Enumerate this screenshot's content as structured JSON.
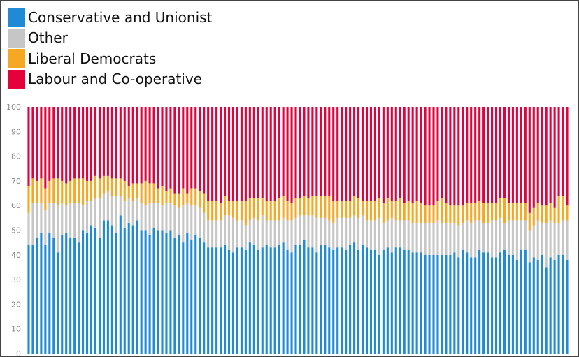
{
  "chart_data": {
    "type": "bar",
    "stacked": true,
    "ylim": [
      0,
      100
    ],
    "yticks": [
      "0",
      "10",
      "20",
      "30",
      "40",
      "50",
      "60",
      "70",
      "80",
      "90",
      "100"
    ],
    "grid": false,
    "legend_position": "top-left",
    "legend": [
      {
        "name": "Conservative and Unionist",
        "color": "#1f8ad6"
      },
      {
        "name": "Other",
        "color": "#c6c6c6"
      },
      {
        "name": "Liberal Democrats",
        "color": "#f7a823"
      },
      {
        "name": "Labour and Co-operative",
        "color": "#e4003b"
      }
    ],
    "series": [
      {
        "name": "Conservative and Unionist",
        "color": "#1f8ad6",
        "values": [
          44,
          44,
          47,
          49,
          44,
          49,
          47,
          41,
          48,
          49,
          47,
          47,
          45,
          50,
          49,
          52,
          51,
          47,
          54,
          54,
          52,
          49,
          56,
          51,
          53,
          52,
          54,
          50,
          50,
          48,
          51,
          50,
          50,
          49,
          50,
          47,
          48,
          45,
          49,
          46,
          48,
          47,
          45,
          43,
          43,
          43,
          43,
          44,
          42,
          41,
          43,
          43,
          42,
          45,
          44,
          42,
          43,
          44,
          43,
          43,
          44,
          45,
          42,
          41,
          44,
          44,
          46,
          43,
          43,
          41,
          44,
          44,
          43,
          42,
          43,
          43,
          42,
          44,
          45,
          42,
          44,
          43,
          42,
          42,
          40,
          42,
          43,
          41,
          43,
          43,
          42,
          42,
          41,
          41,
          41,
          40,
          40,
          40,
          40,
          40,
          40,
          40,
          41,
          39,
          42,
          41,
          39,
          39,
          42,
          41,
          41,
          39,
          39,
          41,
          42,
          40,
          40,
          38,
          42,
          42,
          37,
          39,
          38,
          40,
          35,
          39,
          38,
          40,
          40,
          38
        ]
      },
      {
        "name": "Other",
        "color": "#c6c6c6",
        "values": [
          13,
          17,
          14,
          12,
          14,
          12,
          14,
          19,
          13,
          11,
          14,
          14,
          16,
          10,
          13,
          10,
          12,
          16,
          11,
          12,
          12,
          15,
          8,
          11,
          10,
          10,
          9,
          11,
          10,
          13,
          10,
          11,
          10,
          12,
          11,
          13,
          11,
          15,
          12,
          14,
          12,
          12,
          12,
          11,
          11,
          11,
          11,
          12,
          14,
          14,
          11,
          11,
          10,
          9,
          11,
          12,
          13,
          10,
          11,
          11,
          10,
          10,
          12,
          13,
          11,
          12,
          10,
          13,
          13,
          14,
          11,
          11,
          11,
          11,
          12,
          12,
          13,
          11,
          11,
          13,
          12,
          11,
          12,
          12,
          15,
          11,
          11,
          14,
          11,
          11,
          12,
          12,
          12,
          12,
          12,
          13,
          13,
          13,
          14,
          13,
          13,
          13,
          12,
          13,
          11,
          13,
          14,
          15,
          12,
          12,
          12,
          15,
          15,
          14,
          11,
          14,
          14,
          16,
          12,
          12,
          13,
          13,
          16,
          13,
          18,
          15,
          15,
          13,
          14,
          16
        ]
      },
      {
        "name": "Liberal Democrats",
        "color": "#f7a823",
        "values": [
          11,
          10,
          9,
          10,
          9,
          9,
          10,
          11,
          9,
          9,
          9,
          10,
          10,
          11,
          8,
          8,
          9,
          8,
          7,
          6,
          7,
          7,
          7,
          8,
          5,
          7,
          6,
          8,
          10,
          8,
          8,
          6,
          8,
          5,
          6,
          5,
          6,
          7,
          4,
          7,
          7,
          7,
          8,
          8,
          8,
          8,
          7,
          8,
          6,
          7,
          8,
          8,
          10,
          9,
          8,
          9,
          7,
          8,
          8,
          8,
          9,
          9,
          8,
          7,
          8,
          7,
          8,
          7,
          8,
          9,
          9,
          9,
          10,
          9,
          7,
          7,
          7,
          7,
          8,
          8,
          6,
          8,
          8,
          8,
          8,
          8,
          9,
          7,
          8,
          9,
          7,
          8,
          8,
          9,
          8,
          7,
          7,
          7,
          8,
          10,
          8,
          7,
          7,
          8,
          7,
          7,
          8,
          7,
          8,
          8,
          8,
          7,
          7,
          8,
          10,
          7,
          7,
          7,
          7,
          7,
          7,
          7,
          7,
          7,
          7,
          7,
          6,
          11,
          10,
          6
        ]
      },
      {
        "name": "Labour and Co-operative",
        "color": "#e4003b",
        "values": [
          32,
          29,
          30,
          29,
          33,
          30,
          29,
          29,
          30,
          31,
          30,
          29,
          29,
          29,
          30,
          30,
          28,
          29,
          28,
          28,
          29,
          29,
          29,
          30,
          32,
          31,
          31,
          31,
          30,
          31,
          31,
          33,
          32,
          34,
          33,
          35,
          35,
          33,
          35,
          33,
          33,
          34,
          35,
          38,
          38,
          38,
          39,
          36,
          38,
          38,
          38,
          38,
          38,
          37,
          37,
          37,
          37,
          38,
          38,
          38,
          37,
          36,
          38,
          39,
          37,
          37,
          36,
          37,
          36,
          36,
          36,
          36,
          36,
          38,
          38,
          38,
          38,
          38,
          36,
          37,
          38,
          38,
          38,
          38,
          37,
          39,
          37,
          38,
          38,
          37,
          39,
          38,
          39,
          38,
          39,
          40,
          40,
          40,
          38,
          37,
          39,
          40,
          40,
          40,
          40,
          39,
          39,
          39,
          38,
          39,
          39,
          39,
          39,
          37,
          37,
          39,
          39,
          39,
          39,
          39,
          43,
          41,
          39,
          40,
          40,
          39,
          41,
          36,
          36,
          40
        ]
      }
    ]
  }
}
